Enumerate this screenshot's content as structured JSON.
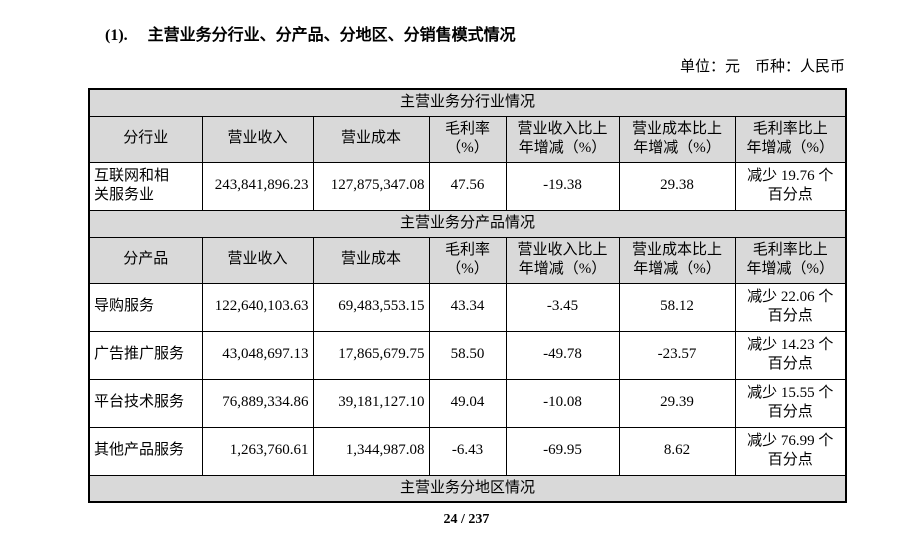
{
  "colors": {
    "band_bg": "#d9d9d9",
    "border": "#000000",
    "text": "#000000"
  },
  "heading": {
    "number": "(1).",
    "text": "主营业务分行业、分产品、分地区、分销售模式情况"
  },
  "unit_note": "单位：元　币种：人民币",
  "table": {
    "sections": [
      {
        "title": "主营业务分行业情况",
        "header": [
          "分行业",
          "营业收入",
          "营业成本",
          "毛利率\n（%）",
          "营业收入比上\n年增减（%）",
          "营业成本比上\n年增减（%）",
          "毛利率比上\n年增减（%）"
        ],
        "rows": [
          [
            "互联网和相\n关服务业",
            "243,841,896.23",
            "127,875,347.08",
            "47.56",
            "-19.38",
            "29.38",
            "减少 19.76 个\n百分点"
          ]
        ]
      },
      {
        "title": "主营业务分产品情况",
        "header": [
          "分产品",
          "营业收入",
          "营业成本",
          "毛利率\n（%）",
          "营业收入比上\n年增减（%）",
          "营业成本比上\n年增减（%）",
          "毛利率比上\n年增减（%）"
        ],
        "rows": [
          [
            "导购服务",
            "122,640,103.63",
            "69,483,553.15",
            "43.34",
            "-3.45",
            "58.12",
            "减少 22.06 个\n百分点"
          ],
          [
            "广告推广服务",
            "43,048,697.13",
            "17,865,679.75",
            "58.50",
            "-49.78",
            "-23.57",
            "减少 14.23 个\n百分点"
          ],
          [
            "平台技术服务",
            "76,889,334.86",
            "39,181,127.10",
            "49.04",
            "-10.08",
            "29.39",
            "减少 15.55 个\n百分点"
          ],
          [
            "其他产品服务",
            "1,263,760.61",
            "1,344,987.08",
            "-6.43",
            "-69.95",
            "8.62",
            "减少 76.99 个\n百分点"
          ]
        ]
      },
      {
        "title": "主营业务分地区情况",
        "header": null,
        "rows": []
      }
    ]
  },
  "footer": {
    "page_number": "24 / 237"
  }
}
